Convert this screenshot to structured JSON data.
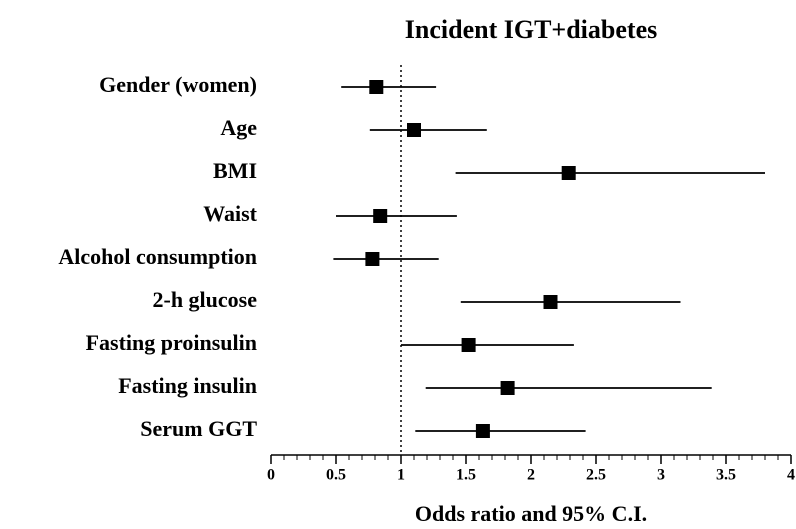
{
  "chart_data": {
    "type": "forest",
    "title": "Incident IGT+diabetes",
    "x_label": "Odds ratio and 95% C.I.",
    "categories": [
      "Gender (women)",
      "Age",
      "BMI",
      "Waist",
      "Alcohol consumption",
      "2-h glucose",
      "Fasting proinsulin",
      "Fasting insulin",
      "Serum GGT"
    ],
    "values": [
      0.81,
      1.1,
      2.29,
      0.84,
      0.78,
      2.15,
      1.52,
      1.82,
      1.63
    ],
    "lower": [
      0.54,
      0.76,
      1.42,
      0.5,
      0.48,
      1.46,
      1.0,
      1.19,
      1.11
    ],
    "upper": [
      1.27,
      1.66,
      3.8,
      1.43,
      1.29,
      3.15,
      2.33,
      3.39,
      2.42
    ],
    "color": "#000000",
    "ref_line": 1,
    "xlim": [
      0,
      4
    ],
    "xticks": [
      0,
      0.5,
      1,
      1.5,
      2,
      2.5,
      3,
      3.5,
      4
    ],
    "xminorticks": [
      0.1,
      0.2,
      0.3,
      0.4,
      0.6,
      0.7,
      0.8,
      0.9,
      1.1,
      1.2,
      1.3,
      1.4,
      1.6,
      1.7,
      1.8,
      1.9,
      2.1,
      2.2,
      2.3,
      2.4,
      2.6,
      2.7,
      2.8,
      2.9,
      3.1,
      3.2,
      3.3,
      3.4,
      3.6,
      3.7,
      3.8,
      3.9
    ]
  }
}
